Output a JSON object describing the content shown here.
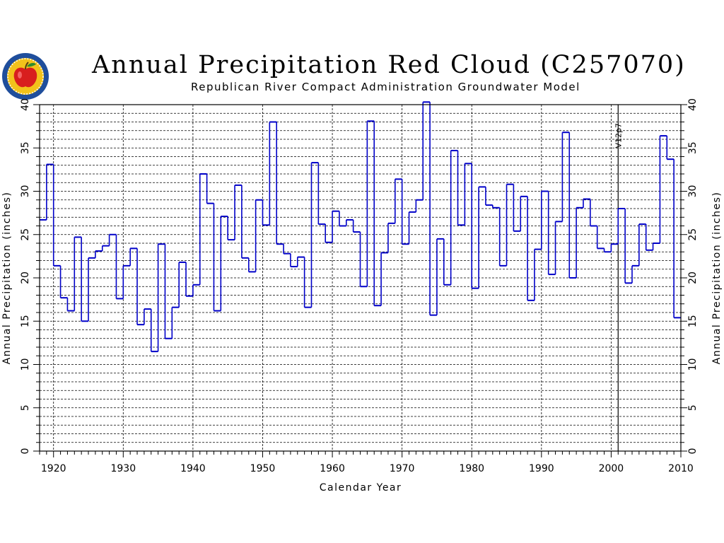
{
  "header": {
    "title": "Annual Precipitation Red Cloud (C257070)",
    "subtitle": "Republican River Compact Administration Groundwater Model"
  },
  "logo": {
    "icon": "apple-seal-icon",
    "colors": [
      "#1f4e9c",
      "#f2c21b",
      "#d81e1e",
      "#2e8b2e"
    ]
  },
  "chart_data": {
    "type": "line",
    "step": true,
    "xlabel": "Calendar Year",
    "ylabel": "Annual Precipitation (inches)",
    "ylabel_right": "Annual Precipitation (inches)",
    "xlim": [
      1918,
      2010
    ],
    "ylim": [
      0,
      40
    ],
    "x_ticks": [
      1920,
      1930,
      1940,
      1950,
      1960,
      1970,
      1980,
      1990,
      2000,
      2010
    ],
    "y_ticks": [
      0,
      5,
      10,
      15,
      20,
      25,
      30,
      35,
      40
    ],
    "grid": true,
    "line_color": "#0000c8",
    "annotation": {
      "x": 2001,
      "label": "V12p7"
    },
    "x": [
      1918,
      1919,
      1920,
      1921,
      1922,
      1923,
      1924,
      1925,
      1926,
      1927,
      1928,
      1929,
      1930,
      1931,
      1932,
      1933,
      1934,
      1935,
      1936,
      1937,
      1938,
      1939,
      1940,
      1941,
      1942,
      1943,
      1944,
      1945,
      1946,
      1947,
      1948,
      1949,
      1950,
      1951,
      1952,
      1953,
      1954,
      1955,
      1956,
      1957,
      1958,
      1959,
      1960,
      1961,
      1962,
      1963,
      1964,
      1965,
      1966,
      1967,
      1968,
      1969,
      1970,
      1971,
      1972,
      1973,
      1974,
      1975,
      1976,
      1977,
      1978,
      1979,
      1980,
      1981,
      1982,
      1983,
      1984,
      1985,
      1986,
      1987,
      1988,
      1989,
      1990,
      1991,
      1992,
      1993,
      1994,
      1995,
      1996,
      1997,
      1998,
      1999,
      2000,
      2001,
      2002,
      2003,
      2004,
      2005,
      2006,
      2007,
      2008,
      2009
    ],
    "values": [
      26.7,
      33.1,
      21.4,
      17.7,
      16.2,
      24.7,
      15.0,
      22.3,
      23.1,
      23.7,
      25.0,
      17.6,
      21.4,
      23.4,
      14.6,
      16.4,
      11.5,
      23.9,
      13.0,
      16.6,
      21.8,
      17.9,
      19.2,
      32.0,
      28.6,
      16.2,
      27.1,
      24.4,
      30.7,
      22.3,
      20.7,
      29.0,
      26.1,
      38.0,
      23.9,
      22.8,
      21.3,
      22.4,
      16.6,
      33.3,
      26.2,
      24.1,
      27.7,
      26.0,
      26.7,
      25.3,
      19.0,
      38.1,
      16.8,
      22.9,
      26.3,
      31.4,
      23.9,
      27.6,
      29.0,
      40.3,
      15.7,
      24.5,
      19.2,
      34.7,
      26.1,
      33.2,
      18.8,
      30.5,
      28.4,
      28.1,
      21.4,
      30.8,
      25.4,
      29.4,
      17.4,
      23.3,
      30.0,
      20.4,
      26.5,
      36.8,
      20.0,
      28.1,
      29.1,
      26.0,
      23.4,
      23.0,
      23.9,
      28.0,
      19.4,
      21.4,
      26.2,
      23.2,
      24.0,
      36.4,
      33.7,
      15.4
    ]
  }
}
